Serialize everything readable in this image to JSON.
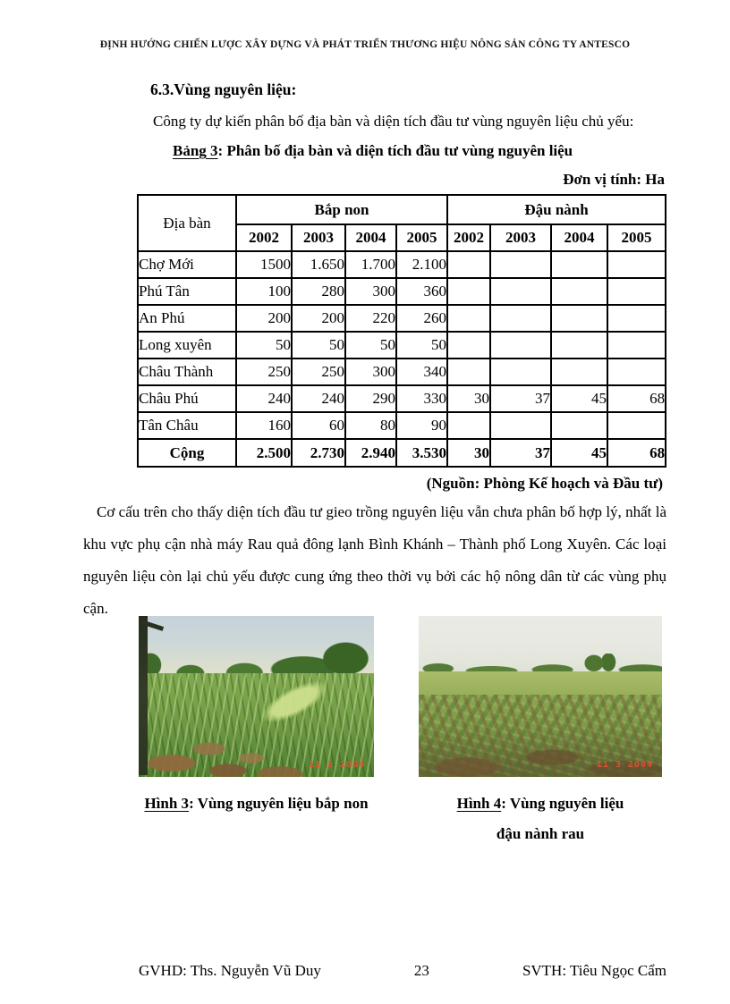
{
  "page": {
    "running_header": "ĐỊNH HƯỚNG CHIẾN LƯỢC XÂY DỰNG VÀ PHÁT TRIỂN THƯƠNG HIỆU NÔNG SẢN CÔNG TY ANTESCO",
    "footer": {
      "left": "GVHD: Ths. Nguyễn Vũ Duy",
      "page_number": "23",
      "right": "SVTH: Tiêu Ngọc Cẩm"
    }
  },
  "section": {
    "heading": "6.3.Vùng nguyên liệu:",
    "intro": "Công ty dự kiến phân bố địa bàn và diện tích đầu tư vùng nguyên liệu chủ yếu:",
    "table_caption_label": "Bảng 3",
    "table_caption_rest": ": Phân bố địa bàn và diện tích đầu tư vùng nguyên liệu",
    "unit_note": "Đơn vị tính: Ha",
    "source_note": "(Nguồn: Phòng Kế hoạch và Đầu tư)",
    "analysis": "Cơ cấu trên cho thấy diện tích đầu tư gieo trồng nguyên liệu vẫn chưa phân bố hợp lý, nhất là khu vực phụ cận nhà máy Rau quả đông lạnh Bình Khánh – Thành phố Long Xuyên. Các loại nguyên liệu còn lại chủ yếu được cung ứng theo thời vụ bởi các hộ nông dân từ các vùng phụ cận."
  },
  "table": {
    "corner_header": "Địa bàn",
    "group_headers": [
      "Bắp non",
      "Đậu nành"
    ],
    "years": [
      "2002",
      "2003",
      "2004",
      "2005",
      "2002",
      "2003",
      "2004",
      "2005"
    ],
    "rows": [
      {
        "name": "Chợ Mới",
        "values": [
          "1500",
          "1.650",
          "1.700",
          "2.100",
          "",
          "",
          "",
          ""
        ]
      },
      {
        "name": "Phú Tân",
        "values": [
          "100",
          "280",
          "300",
          "360",
          "",
          "",
          "",
          ""
        ]
      },
      {
        "name": "An Phú",
        "values": [
          "200",
          "200",
          "220",
          "260",
          "",
          "",
          "",
          ""
        ]
      },
      {
        "name": "Long xuyên",
        "values": [
          "50",
          "50",
          "50",
          "50",
          "",
          "",
          "",
          ""
        ]
      },
      {
        "name": "Châu Thành",
        "values": [
          "250",
          "250",
          "300",
          "340",
          "",
          "",
          "",
          ""
        ]
      },
      {
        "name": "Châu Phú",
        "values": [
          "240",
          "240",
          "290",
          "330",
          "30",
          "37",
          "45",
          "68"
        ]
      },
      {
        "name": "Tân Châu",
        "values": [
          "160",
          "60",
          "80",
          "90",
          "",
          "",
          "",
          ""
        ]
      }
    ],
    "total_row": {
      "name": "Cộng",
      "values": [
        "2.500",
        "2.730",
        "2.940",
        "3.530",
        "30",
        "37",
        "45",
        "68"
      ]
    }
  },
  "figures": [
    {
      "label": "Hình 3",
      "caption_rest": ": Vùng nguyên liệu bắp non",
      "caption_line2": "",
      "stamp": "11 2 2004"
    },
    {
      "label": "Hình 4",
      "caption_rest": ": Vùng nguyên liệu",
      "caption_line2": "đậu nành rau",
      "stamp": "11 3 2004"
    }
  ]
}
